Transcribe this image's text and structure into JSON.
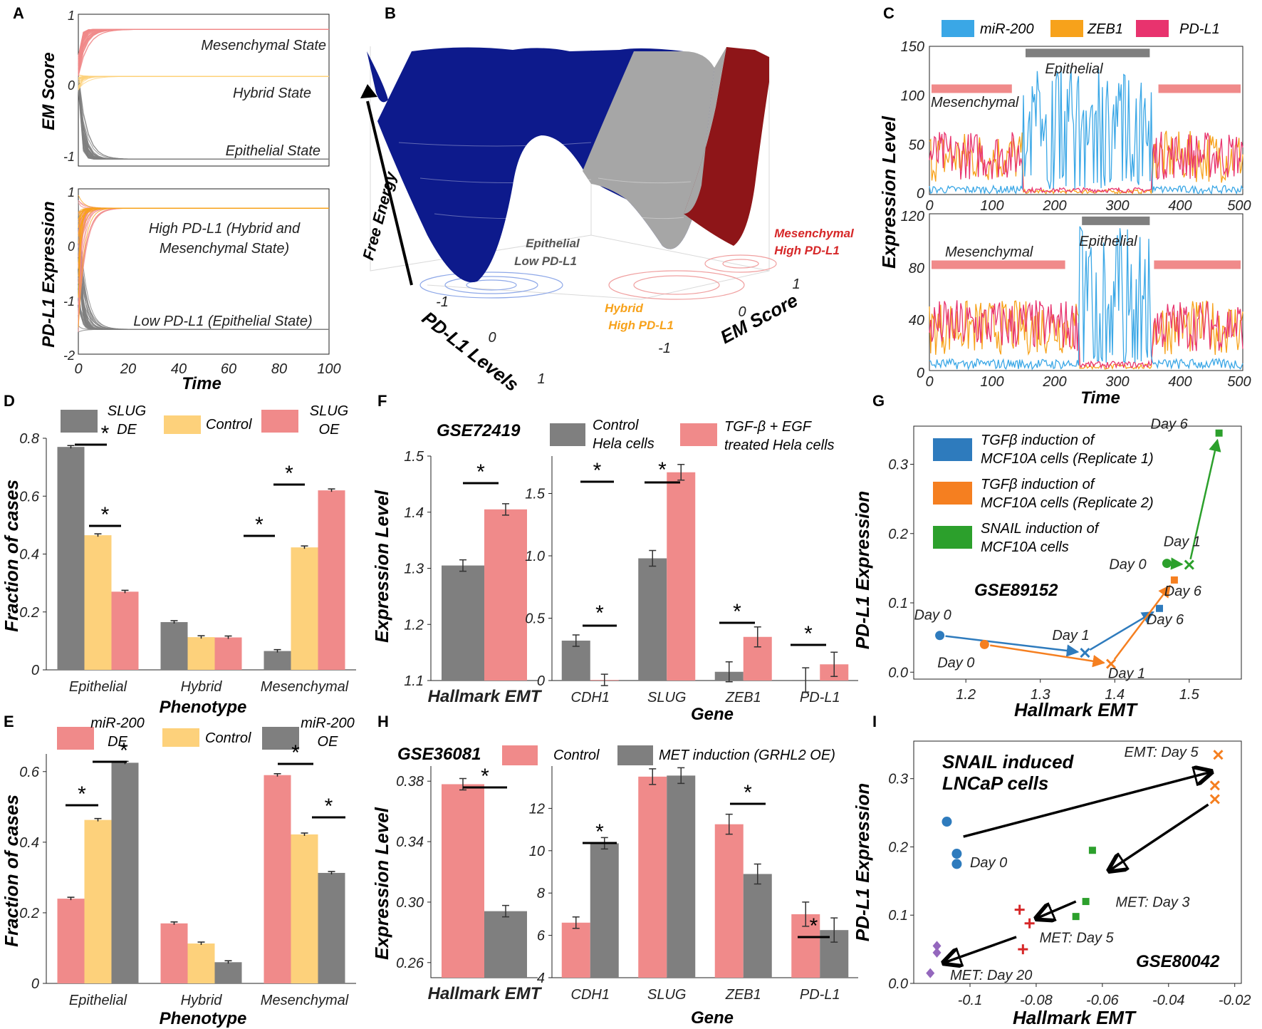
{
  "figure": {
    "panel_letters": [
      "A",
      "B",
      "C",
      "D",
      "E",
      "F",
      "G",
      "H",
      "I"
    ]
  },
  "colors": {
    "grey": "#7f7f7f",
    "pink": "#f08a8a",
    "yellow": "#fdd17b",
    "blue": "#3aa7e6",
    "orange": "#f7a21b",
    "magenta": "#e8336e",
    "navy": "#0d1a8c",
    "darkred": "#8e1518",
    "lightgrey": "#a6a6a6",
    "mplblue": "#2e7bbd",
    "mplorange": "#f57f20",
    "mplgreen": "#2ca02c",
    "mplred": "#d62728",
    "mplpurple": "#9467bd"
  },
  "panelA": {
    "top": {
      "ylabel": "EM Score",
      "yticks": [
        "1",
        "0",
        "-1"
      ],
      "ylim": [
        -1.2,
        1
      ],
      "labels": [
        "Mesenchymal State",
        "Hybrid State",
        "Epithelial State"
      ],
      "levels": [
        0.78,
        0.1,
        -1.1
      ]
    },
    "bottom": {
      "ylabel": "PD-L1 Expression",
      "yticks": [
        "1",
        "0",
        "-1",
        "-2"
      ],
      "ylim": [
        -2,
        1
      ],
      "labels": [
        "High PD-L1 (Hybrid and",
        "Mesenchymal State)",
        "Low PD-L1 (Epithelial State)"
      ],
      "levels": [
        0.65,
        -1.55
      ]
    },
    "xticks": [
      "0",
      "20",
      "40",
      "60",
      "80",
      "100"
    ],
    "xlabel": "Time"
  },
  "panelB": {
    "zlabel": "Free Energy",
    "xlabel": "PD-L1 Levels",
    "ylabel": "EM Score",
    "xticks": [
      "-1",
      "0",
      "1"
    ],
    "yticks": [
      "-1",
      "0",
      "1"
    ],
    "basins": [
      {
        "line1": "Epithelial",
        "line2": "Low PD-L1",
        "color": "#555555"
      },
      {
        "line1": "Hybrid",
        "line2": "High PD-L1",
        "color": "#f7a21b"
      },
      {
        "line1": "Mesenchymal",
        "line2": "High PD-L1",
        "color": "#d62728"
      }
    ]
  },
  "panelC": {
    "legend": [
      "miR-200",
      "ZEB1",
      "PD-L1"
    ],
    "top": {
      "yticks": [
        "150",
        "100",
        "50",
        "0"
      ],
      "ylim": [
        0,
        150
      ],
      "labels": [
        "Mesenchymal",
        "Epithelial"
      ],
      "bars": [
        [
          0,
          135
        ],
        [
          150,
          355
        ],
        [
          362,
          500
        ]
      ],
      "bar_levels": [
        119,
        116
      ]
    },
    "bottom": {
      "yticks": [
        "120",
        "80",
        "40",
        "0"
      ],
      "ylim": [
        0,
        120
      ],
      "labels": [
        "Mesenchymal",
        "Epithelial"
      ],
      "bars": [
        [
          0,
          220
        ],
        [
          240,
          355
        ],
        [
          355,
          500
        ]
      ],
      "bar_levels": [
        90,
        87
      ]
    },
    "xticks": [
      "0",
      "100",
      "200",
      "300",
      "400",
      "500"
    ],
    "ylabel": "Expression Level",
    "xlabel": "Time"
  },
  "chart_data": [
    {
      "panel": "D",
      "type": "bar",
      "title": "",
      "categories": [
        "Epithelial",
        "Hybrid",
        "Mesenchymal"
      ],
      "series": [
        {
          "name": "SLUG DE",
          "values": [
            0.77,
            0.165,
            0.065
          ]
        },
        {
          "name": "Control",
          "values": [
            0.465,
            0.113,
            0.423
          ]
        },
        {
          "name": "SLUG OE",
          "values": [
            0.27,
            0.112,
            0.62
          ]
        }
      ],
      "legend": [
        "SLUG",
        "DE",
        "Control",
        "SLUG",
        "OE"
      ],
      "xlabel": "Phenotype",
      "ylabel": "Fraction of cases",
      "ylim": [
        0,
        0.8
      ],
      "yticks": [
        "0",
        "0.2",
        "0.4",
        "0.6",
        "0.8"
      ],
      "sig": "*"
    },
    {
      "panel": "E",
      "type": "bar",
      "categories": [
        "Epithelial",
        "Hybrid",
        "Mesenchymal"
      ],
      "series": [
        {
          "name": "miR-200 DE",
          "values": [
            0.24,
            0.17,
            0.59
          ]
        },
        {
          "name": "Control",
          "values": [
            0.463,
            0.113,
            0.422
          ]
        },
        {
          "name": "miR-200 OE",
          "values": [
            0.625,
            0.06,
            0.313
          ]
        }
      ],
      "legend": [
        "miR-200",
        "DE",
        "Control",
        "miR-200",
        "OE"
      ],
      "xlabel": "Phenotype",
      "ylabel": "Fraction of cases",
      "ylim": [
        0,
        0.65
      ],
      "yticks": [
        "0",
        "0.2",
        "0.4",
        "0.6"
      ],
      "sig": "*"
    },
    {
      "panel": "F",
      "type": "bar",
      "title": "GSE72419",
      "legend": [
        "Control",
        "Hela cells",
        "TGF-β + EGF",
        "treated Hela cells"
      ],
      "ylabel": "Expression Level",
      "left": {
        "categories": [
          "Hallmark EMT"
        ],
        "control": [
          1.305
        ],
        "treated": [
          1.405
        ],
        "ylim": [
          1.1,
          1.5
        ],
        "yticks": [
          "1.1",
          "1.2",
          "1.3",
          "1.4",
          "1.5"
        ]
      },
      "right": {
        "categories": [
          "CDH1",
          "SLUG",
          "ZEB1",
          "PD-L1"
        ],
        "control": [
          0.32,
          0.98,
          0.07,
          0.005
        ],
        "treated": [
          0.005,
          1.67,
          0.35,
          0.13
        ],
        "ylim": [
          0,
          1.8
        ],
        "yticks": [
          "0",
          "0.5",
          "1.0",
          "1.5"
        ]
      },
      "xlabel": "Gene",
      "sig": "*"
    },
    {
      "panel": "G",
      "type": "scatter",
      "title": "GSE89152",
      "legend": [
        "TGFβ induction of",
        "MCF10A cells (Replicate 1)",
        "TGFβ induction of",
        "MCF10A cells (Replicate 2)",
        "SNAIL induction of",
        "MCF10A cells"
      ],
      "series": [
        {
          "name": "TGFβ induction of MCF10A cells (Replicate 1)",
          "x": [
            1.165,
            1.36,
            1.46
          ],
          "y": [
            0.053,
            0.028,
            0.092
          ],
          "labels": [
            "Day 0",
            "Day 1",
            "Day 6"
          ]
        },
        {
          "name": "TGFβ induction of MCF10A cells (Replicate 2)",
          "x": [
            1.225,
            1.395,
            1.48
          ],
          "y": [
            0.04,
            0.012,
            0.133
          ],
          "labels": [
            "Day 0",
            "Day 1",
            "Day 6"
          ]
        },
        {
          "name": "SNAIL induction of MCF10A cells",
          "x": [
            1.47,
            1.5,
            1.54
          ],
          "y": [
            0.157,
            0.155,
            0.345
          ],
          "labels": [
            "Day 0",
            "Day 1",
            "Day 6"
          ]
        }
      ],
      "xlabel": "Hallmark EMT",
      "ylabel": "PD-L1 Expression",
      "xlim": [
        1.13,
        1.57
      ],
      "ylim": [
        -0.01,
        0.355
      ],
      "xticks": [
        "1.2",
        "1.3",
        "1.4",
        "1.5"
      ],
      "yticks": [
        "0.0",
        "0.1",
        "0.2",
        "0.3"
      ]
    },
    {
      "panel": "H",
      "type": "bar",
      "title": "GSE36081",
      "legend": [
        "Control",
        "MET induction (GRHL2 OE)"
      ],
      "ylabel": "Expression Level",
      "left": {
        "categories": [
          "Hallmark EMT"
        ],
        "control": [
          0.378
        ],
        "treated": [
          0.294
        ],
        "ylim": [
          0.25,
          0.39
        ],
        "yticks": [
          "0.26",
          "0.30",
          "0.34",
          "0.38"
        ]
      },
      "right": {
        "categories": [
          "CDH1",
          "SLUG",
          "ZEB1",
          "PD-L1"
        ],
        "control": [
          6.6,
          13.5,
          11.25,
          7.0
        ],
        "treated": [
          10.35,
          13.55,
          8.9,
          6.25
        ],
        "ylim": [
          4,
          14
        ],
        "yticks": [
          "4",
          "6",
          "8",
          "10",
          "12"
        ]
      },
      "xlabel": "Gene",
      "sig": "*"
    },
    {
      "panel": "I",
      "type": "scatter",
      "title": "GSE80042",
      "annotation": [
        "SNAIL induced",
        "LNCaP cells"
      ],
      "series": [
        {
          "name": "Day 0",
          "marker": "circle",
          "x": [
            -0.107,
            -0.104,
            -0.104
          ],
          "y": [
            0.237,
            0.19,
            0.175
          ]
        },
        {
          "name": "EMT: Day 5",
          "marker": "x",
          "x": [
            -0.025,
            -0.026,
            -0.026
          ],
          "y": [
            0.335,
            0.29,
            0.27
          ]
        },
        {
          "name": "MET: Day 3",
          "marker": "square",
          "x": [
            -0.063,
            -0.065,
            -0.068
          ],
          "y": [
            0.195,
            0.12,
            0.098
          ]
        },
        {
          "name": "MET: Day 5",
          "marker": "plus",
          "x": [
            -0.085,
            -0.082,
            -0.084
          ],
          "y": [
            0.108,
            0.088,
            0.05
          ]
        },
        {
          "name": "MET: Day 20",
          "marker": "diamond",
          "x": [
            -0.11,
            -0.11,
            -0.112
          ],
          "y": [
            0.055,
            0.045,
            0.015
          ]
        }
      ],
      "xlabel": "Hallmark EMT",
      "ylabel": "PD-L1 Expression",
      "xlim": [
        -0.117,
        -0.018
      ],
      "ylim": [
        0,
        0.355
      ],
      "xticks": [
        "-0.1",
        "-0.08",
        "-0.06",
        "-0.04",
        "-0.02"
      ],
      "yticks": [
        "0.0",
        "0.1",
        "0.2",
        "0.3"
      ]
    }
  ]
}
